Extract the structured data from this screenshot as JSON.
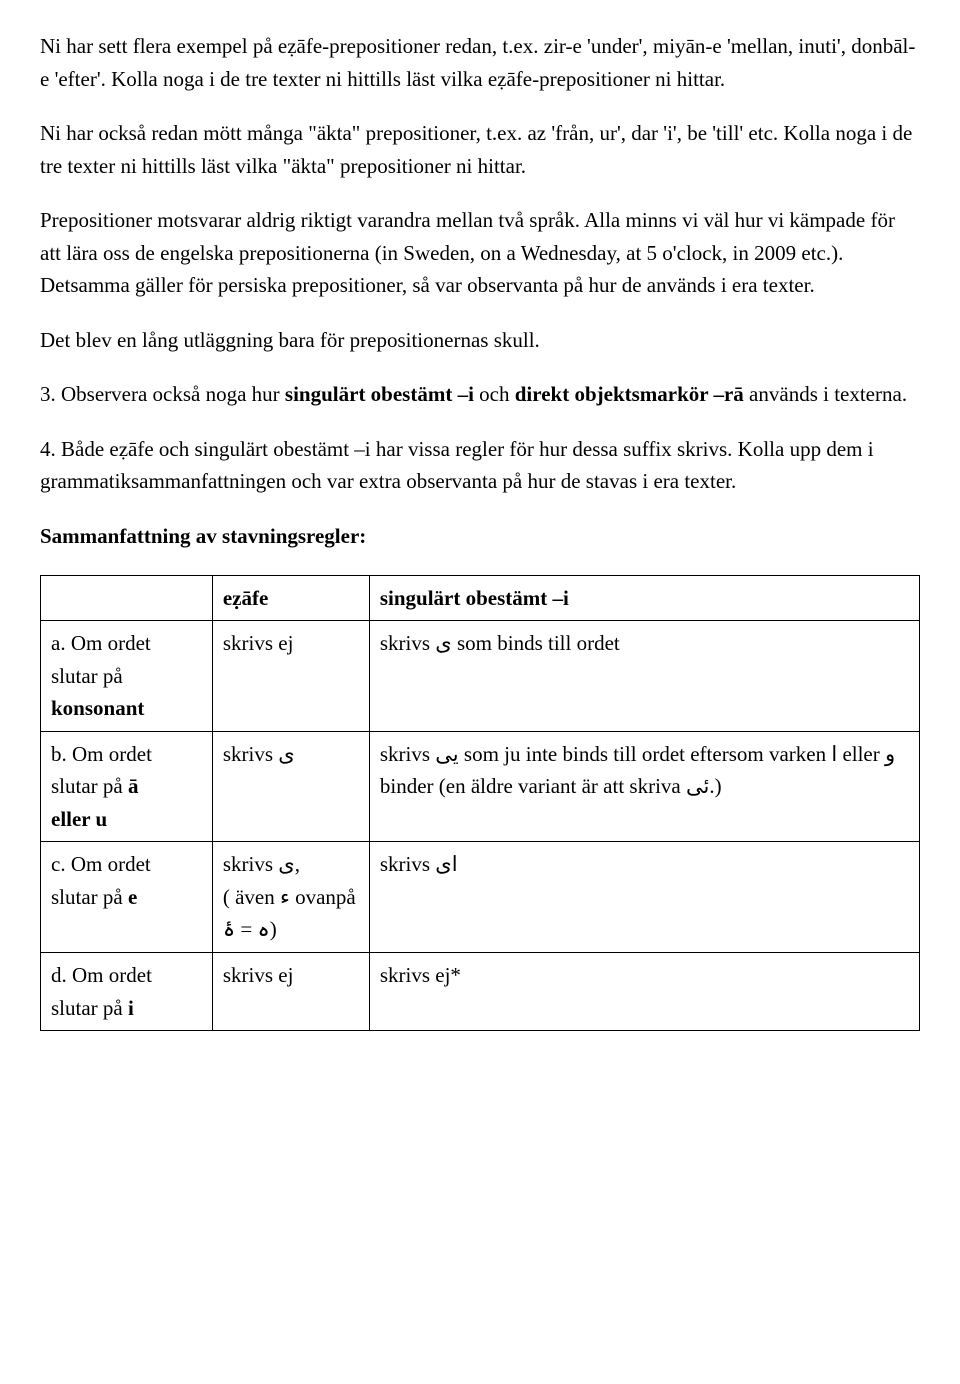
{
  "p1": "Ni har sett flera exempel på eẓāfe-prepositioner redan, t.ex. zir-e 'under', miyān-e 'mellan, inuti', donbāl-e 'efter'. Kolla noga i de tre texter ni hittills läst vilka eẓāfe-prepositioner ni hittar.",
  "p2": "Ni har också redan mött många \"äkta\" prepositioner, t.ex. az 'från, ur', dar 'i', be 'till' etc. Kolla noga i de tre texter ni hittills läst vilka \"äkta\" prepositioner ni hittar.",
  "p3": "Prepositioner motsvarar aldrig riktigt varandra mellan två språk. Alla minns vi väl hur vi kämpade för att lära oss de engelska prepositionerna (in Sweden, on a Wednesday, at 5 o'clock, in 2009 etc.). Detsamma gäller för persiska prepositioner, så var observanta på hur de används i era texter.",
  "p4": "Det blev en lång utläggning bara för prepositionernas skull.",
  "p5a": "3. Observera också noga hur ",
  "p5b": "singulärt obestämt –i",
  "p5c": " och ",
  "p5d": "direkt objektsmarkör –rā",
  "p5e": " används i texterna.",
  "p6": "4. Både eẓāfe och singulärt obestämt –i har vissa regler för hur dessa suffix skrivs. Kolla upp dem i grammatiksammanfattningen och var extra observanta på hur de stavas i era texter.",
  "p7": "Sammanfattning av stavningsregler:",
  "table": {
    "header": {
      "c1": "",
      "c2": "eẓāfe",
      "c3": "singulärt obestämt –i"
    },
    "rows": [
      {
        "c1a": "a. Om ordet slutar på ",
        "c1b": "konsonant",
        "c2": "skrivs ej",
        "c3": "skrivs ى som binds till ordet"
      },
      {
        "c1a": "b. Om ordet slutar på ",
        "c1b": "ā",
        "c1c": " ",
        "c1d": "eller u",
        "c2": "skrivs ى",
        "c3": "skrivs یی som ju inte binds till ordet eftersom varken ا eller و binder (en äldre variant är att skriva ئی.)"
      },
      {
        "c1a": "c. Om ordet slutar på ",
        "c1b": "e",
        "c2a": "skrivs ى,",
        "c2b": "( även ء ovanpå ه = ۀ)",
        "c3": "skrivs اى"
      },
      {
        "c1a": "d. Om ordet slutar på ",
        "c1b": "i",
        "c2": "skrivs ej",
        "c3": "skrivs ej*"
      }
    ]
  }
}
